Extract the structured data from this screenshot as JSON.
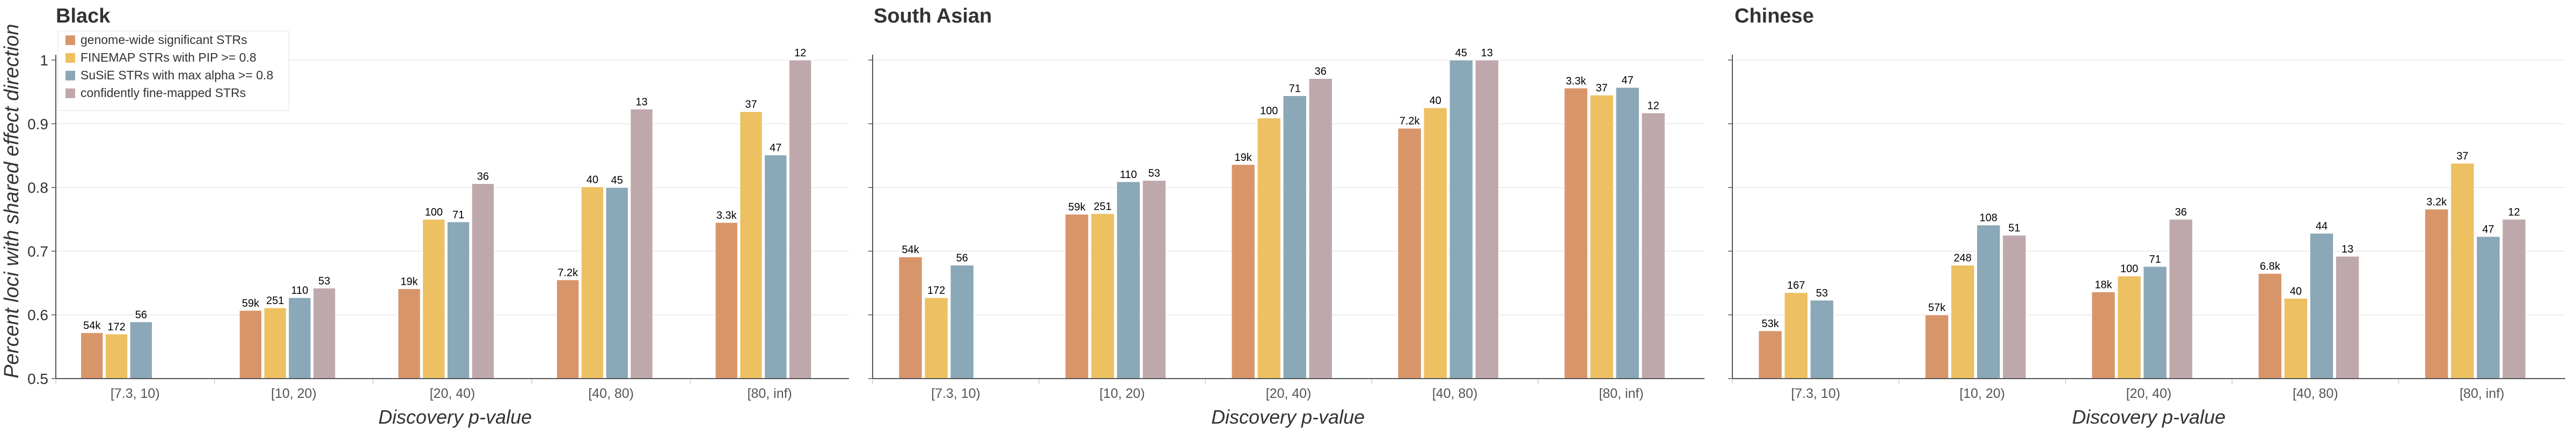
{
  "chart_data": [
    {
      "type": "bar",
      "title": "Black",
      "xlabel": "Discovery p-value",
      "ylabel": "Percent loci with shared effect direction",
      "ylim": [
        0.5,
        1.0
      ],
      "yticks": [
        0.5,
        0.6,
        0.7,
        0.8,
        0.9,
        1
      ],
      "ytick_labels": [
        "0.5",
        "0.6",
        "0.7",
        "0.8",
        "0.9",
        "1"
      ],
      "grid": "y",
      "categories": [
        "[7.3, 10)",
        "[10, 20)",
        "[20, 40)",
        "[40, 80)",
        "[80, inf)"
      ],
      "series": [
        {
          "name": "genome-wide significant STRs",
          "values": [
            0.572,
            0.607,
            0.641,
            0.655,
            0.745
          ],
          "labels": [
            "54k",
            "59k",
            "19k",
            "7.2k",
            "3.3k"
          ]
        },
        {
          "name": "FINEMAP STRs with PIP >= 0.8",
          "values": [
            0.57,
            0.611,
            0.75,
            0.801,
            0.919
          ],
          "labels": [
            "172",
            "251",
            "100",
            "40",
            "37"
          ]
        },
        {
          "name": "SuSiE STRs with max alpha >= 0.8",
          "values": [
            0.589,
            0.627,
            0.746,
            0.8,
            0.851
          ],
          "labels": [
            "56",
            "110",
            "71",
            "45",
            "47"
          ]
        },
        {
          "name": "confidently fine-mapped STRs",
          "values": [
            null,
            0.642,
            0.806,
            0.923,
            1.0
          ],
          "labels": [
            "",
            "53",
            "36",
            "13",
            "12"
          ]
        }
      ],
      "legend": {
        "position": "top-left",
        "entries": [
          "genome-wide significant STRs",
          "FINEMAP STRs with PIP >= 0.8",
          "SuSiE STRs with max alpha >= 0.8",
          "confidently fine-mapped STRs"
        ]
      }
    },
    {
      "type": "bar",
      "title": "South Asian",
      "xlabel": "Discovery p-value",
      "ylabel": "",
      "ylim": [
        0.5,
        1.0
      ],
      "grid": "y",
      "categories": [
        "[7.3, 10)",
        "[10, 20)",
        "[20, 40)",
        "[40, 80)",
        "[80, inf)"
      ],
      "series": [
        {
          "name": "genome-wide significant STRs",
          "values": [
            0.691,
            0.758,
            0.836,
            0.893,
            0.956
          ],
          "labels": [
            "54k",
            "59k",
            "19k",
            "7.2k",
            "3.3k"
          ]
        },
        {
          "name": "FINEMAP STRs with PIP >= 0.8",
          "values": [
            0.627,
            0.759,
            0.909,
            0.925,
            0.945
          ],
          "labels": [
            "172",
            "251",
            "100",
            "40",
            "37"
          ]
        },
        {
          "name": "SuSiE STRs with max alpha >= 0.8",
          "values": [
            0.678,
            0.809,
            0.944,
            1.0,
            0.957
          ],
          "labels": [
            "56",
            "110",
            "71",
            "45",
            "47"
          ]
        },
        {
          "name": "confidently fine-mapped STRs",
          "values": [
            null,
            0.811,
            0.971,
            1.0,
            0.917
          ],
          "labels": [
            "",
            "53",
            "36",
            "13",
            "12"
          ]
        }
      ]
    },
    {
      "type": "bar",
      "title": "Chinese",
      "xlabel": "Discovery p-value",
      "ylabel": "",
      "ylim": [
        0.5,
        1.0
      ],
      "grid": "y",
      "categories": [
        "[7.3, 10)",
        "[10, 20)",
        "[20, 40)",
        "[40, 80)",
        "[80, inf)"
      ],
      "series": [
        {
          "name": "genome-wide significant STRs",
          "values": [
            0.575,
            0.6,
            0.636,
            0.665,
            0.766
          ],
          "labels": [
            "53k",
            "57k",
            "18k",
            "6.8k",
            "3.2k"
          ]
        },
        {
          "name": "FINEMAP STRs with PIP >= 0.8",
          "values": [
            0.635,
            0.678,
            0.661,
            0.626,
            0.838
          ],
          "labels": [
            "167",
            "248",
            "100",
            "40",
            "37"
          ]
        },
        {
          "name": "SuSiE STRs with max alpha >= 0.8",
          "values": [
            0.623,
            0.741,
            0.676,
            0.728,
            0.723
          ],
          "labels": [
            "53",
            "108",
            "71",
            "44",
            "47"
          ]
        },
        {
          "name": "confidently fine-mapped STRs",
          "values": [
            null,
            0.725,
            0.75,
            0.692,
            0.75
          ],
          "labels": [
            "",
            "51",
            "36",
            "13",
            "12"
          ]
        }
      ]
    }
  ],
  "colors": {
    "series": [
      "#d9956a",
      "#edc062",
      "#8aa8b7",
      "#bfa8ab"
    ],
    "grid": "#e8e8e8",
    "axis": "#555555",
    "text": "#333333"
  }
}
